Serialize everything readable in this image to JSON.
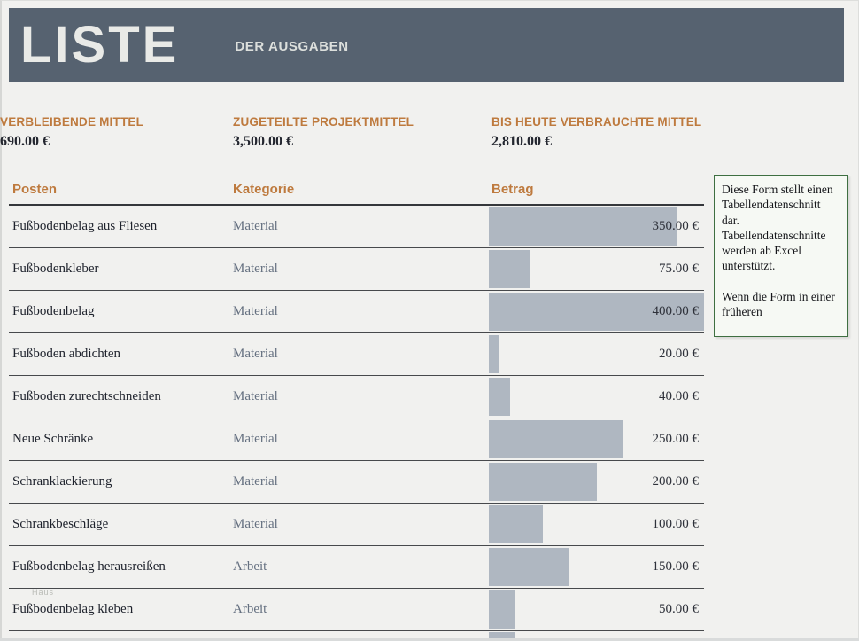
{
  "header": {
    "title": "LISTE",
    "subtitle": "DER AUSGABEN"
  },
  "summary": [
    {
      "label": "ZUGETEILTE PROJEKTMITTEL",
      "value": "3,500.00 €"
    },
    {
      "label": "BIS HEUTE VERBRAUCHTE MITTEL",
      "value": "2,810.00 €"
    },
    {
      "label": "VERBLEIBENDE MITTEL",
      "value": "690.00 €"
    }
  ],
  "table": {
    "columns": [
      "Posten",
      "Kategorie",
      "Betrag"
    ],
    "bar_max_value": 400,
    "rows": [
      {
        "posten": "Fußbodenbelag aus Fliesen",
        "kategorie": "Material",
        "betrag": 350,
        "betrag_label": "350.00 €"
      },
      {
        "posten": "Fußbodenkleber",
        "kategorie": "Material",
        "betrag": 75,
        "betrag_label": "75.00 €"
      },
      {
        "posten": "Fußbodenbelag",
        "kategorie": "Material",
        "betrag": 400,
        "betrag_label": "400.00 €"
      },
      {
        "posten": "Fußboden abdichten",
        "kategorie": "Material",
        "betrag": 20,
        "betrag_label": "20.00 €"
      },
      {
        "posten": "Fußboden zurechtschneiden",
        "kategorie": "Material",
        "betrag": 40,
        "betrag_label": "40.00 €"
      },
      {
        "posten": "Neue Schränke",
        "kategorie": "Material",
        "betrag": 250,
        "betrag_label": "250.00 €"
      },
      {
        "posten": "Schranklackierung",
        "kategorie": "Material",
        "betrag": 200,
        "betrag_label": "200.00 €"
      },
      {
        "posten": "Schrankbeschläge",
        "kategorie": "Material",
        "betrag": 100,
        "betrag_label": "100.00 €"
      },
      {
        "posten": "Fußbodenbelag herausreißen",
        "kategorie": "Arbeit",
        "betrag": 150,
        "betrag_label": "150.00 €"
      },
      {
        "posten": "Fußbodenbelag kleben",
        "kategorie": "Arbeit",
        "betrag": 50,
        "betrag_label": "50.00 €"
      }
    ]
  },
  "comment_box": {
    "paragraphs": [
      "Diese Form stellt einen Tabellendatenschnitt dar. Tabellendatenschnitte werden ab Excel unterstützt.",
      "Wenn die Form in einer früheren"
    ]
  },
  "watermark": "Haus",
  "colors": {
    "header_bg": "#566270",
    "accent_orange": "#BE7A3E",
    "bar_fill": "#AFB7C1",
    "comment_border": "#3E6F41",
    "page_bg": "#F1F1EF"
  }
}
